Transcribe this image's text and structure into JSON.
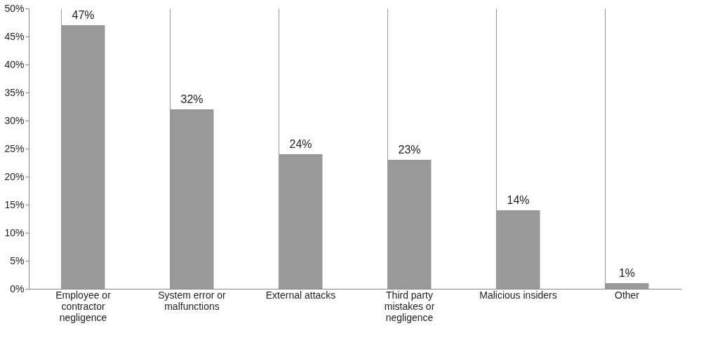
{
  "chart_data": {
    "type": "bar",
    "categories": [
      "Employee or contractor negligence",
      "System error or malfunctions",
      "External attacks",
      "Third party mistakes or negligence",
      "Malicious insiders",
      "Other"
    ],
    "values": [
      47,
      32,
      24,
      23,
      14,
      1
    ],
    "color": "#999999",
    "ylim": [
      0,
      50
    ],
    "yticks": [
      {
        "value": 0,
        "label": "0%"
      },
      {
        "value": 5,
        "label": "5%"
      },
      {
        "value": 10,
        "label": "10%"
      },
      {
        "value": 15,
        "label": "15%"
      },
      {
        "value": 20,
        "label": "20%"
      },
      {
        "value": 25,
        "label": "25%"
      },
      {
        "value": 30,
        "label": "30%"
      },
      {
        "value": 35,
        "label": "35%"
      },
      {
        "value": 40,
        "label": "40%"
      },
      {
        "value": 45,
        "label": "45%"
      },
      {
        "value": 50,
        "label": "50%"
      }
    ],
    "grid": "x",
    "value_labels": [
      "47%",
      "32%",
      "24%",
      "23%",
      "14%",
      "1%"
    ]
  }
}
